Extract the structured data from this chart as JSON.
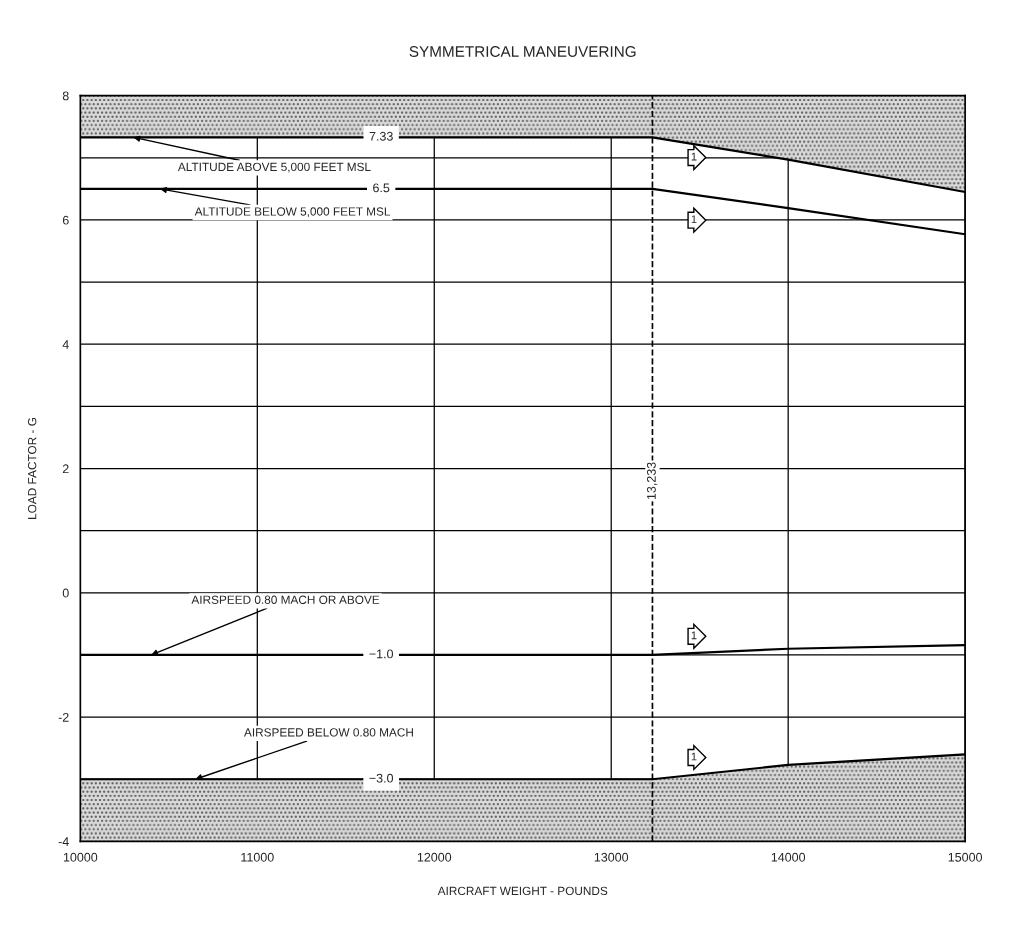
{
  "chart_data": {
    "type": "line",
    "title": "SYMMETRICAL MANEUVERING",
    "xlabel": "AIRCRAFT WEIGHT - POUNDS",
    "ylabel": "LOAD FACTOR - G",
    "x": [
      10000,
      13233,
      14000,
      15000
    ],
    "series": [
      {
        "color": "#000000",
        "values": [
          7.33,
          7.33,
          6.97,
          6.45
        ]
      },
      {
        "color": "#000000",
        "values": [
          6.5,
          6.5,
          6.19,
          5.77
        ]
      },
      {
        "color": "#000000",
        "values": [
          -1.0,
          -1.0,
          -0.9,
          -0.84
        ]
      },
      {
        "color": "#000000",
        "values": [
          -3.0,
          -3.0,
          -2.77,
          -2.6
        ]
      }
    ],
    "xlim": [
      10000,
      15000
    ],
    "ylim": [
      -4,
      8
    ],
    "xticks": [
      10000,
      11000,
      12000,
      13000,
      14000,
      15000
    ],
    "yticks": [
      -4,
      {
        "value": -3,
        "label": null
      },
      -2,
      {
        "value": -1,
        "label": null
      },
      0,
      {
        "value": 1,
        "label": null
      },
      2,
      {
        "value": 3,
        "label": null
      },
      4,
      {
        "value": 5,
        "label": null
      },
      6,
      {
        "value": 7,
        "label": null
      },
      8
    ],
    "grid": true,
    "legend": false,
    "ref_lines": [
      {
        "axis": "x",
        "value": 13233,
        "label": "13,233",
        "line_style": "dashed"
      }
    ],
    "annotations": [
      {
        "text": "ALTITUDE ABOVE 5,000 FEET MSL",
        "x": 10300,
        "y": 7.33
      },
      {
        "text": "ALTITUDE BELOW 5,000 FEET MSL",
        "x": 10450,
        "y": 6.5
      },
      {
        "text": "AIRSPEED 0.80 MACH OR ABOVE",
        "x": 10400,
        "y": -1.0
      },
      {
        "text": "AIRSPEED BELOW 0.80 MACH",
        "x": 10650,
        "y": -3.0
      },
      {
        "text": "7.33",
        "x": 11700,
        "y": 7.33
      },
      {
        "text": "6.5",
        "x": 11700,
        "y": 6.5
      },
      {
        "text": "−1.0",
        "x": 11700,
        "y": -1.0
      },
      {
        "text": "−3.0",
        "x": 11700,
        "y": -3.0
      },
      "1",
      "1",
      "1",
      "1"
    ]
  }
}
